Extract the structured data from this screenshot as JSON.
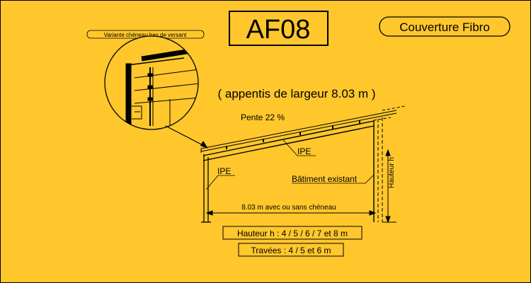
{
  "code": "AF08",
  "badge": "Couverture Fibro",
  "detail_caption": "Variante chéneau bas de versant",
  "heading": "( appentis de largeur 8.03 m )",
  "slope": "Pente 22 %",
  "ipe_roof": "IPE",
  "ipe_column": "IPE",
  "existing_building": "Bâtiment existant",
  "height_label": "Hauteur h",
  "width_label": "8.03 m avec ou sans chéneau",
  "heights_box": "Hauteur h : 4 / 5 / 6 / 7 et  8  m",
  "spans_box": "Travées : 4 / 5  et  6  m",
  "colors": {
    "background": "#ffc72c",
    "ink": "#000000"
  }
}
